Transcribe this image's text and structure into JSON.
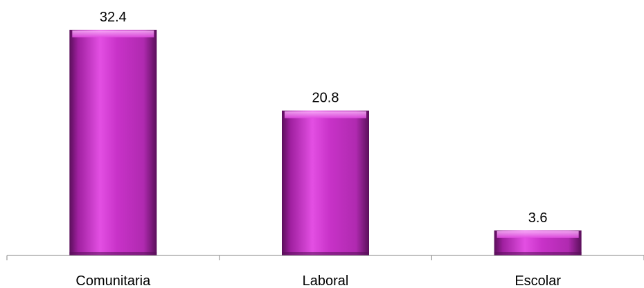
{
  "chart_data": {
    "type": "bar",
    "categories": [
      "Comunitaria",
      "Laboral",
      "Escolar"
    ],
    "values": [
      32.4,
      20.8,
      3.6
    ],
    "value_labels": [
      "32.4",
      "20.8",
      "3.6"
    ],
    "title": "",
    "xlabel": "",
    "ylabel": "",
    "ylim": [
      0,
      32.4
    ],
    "grid": false,
    "legend": "none",
    "bar_color": "#c832c8",
    "bar_highlight": "#f28cf2",
    "bar_shadow": "#5a0f5a",
    "axis_color": "#868686"
  }
}
